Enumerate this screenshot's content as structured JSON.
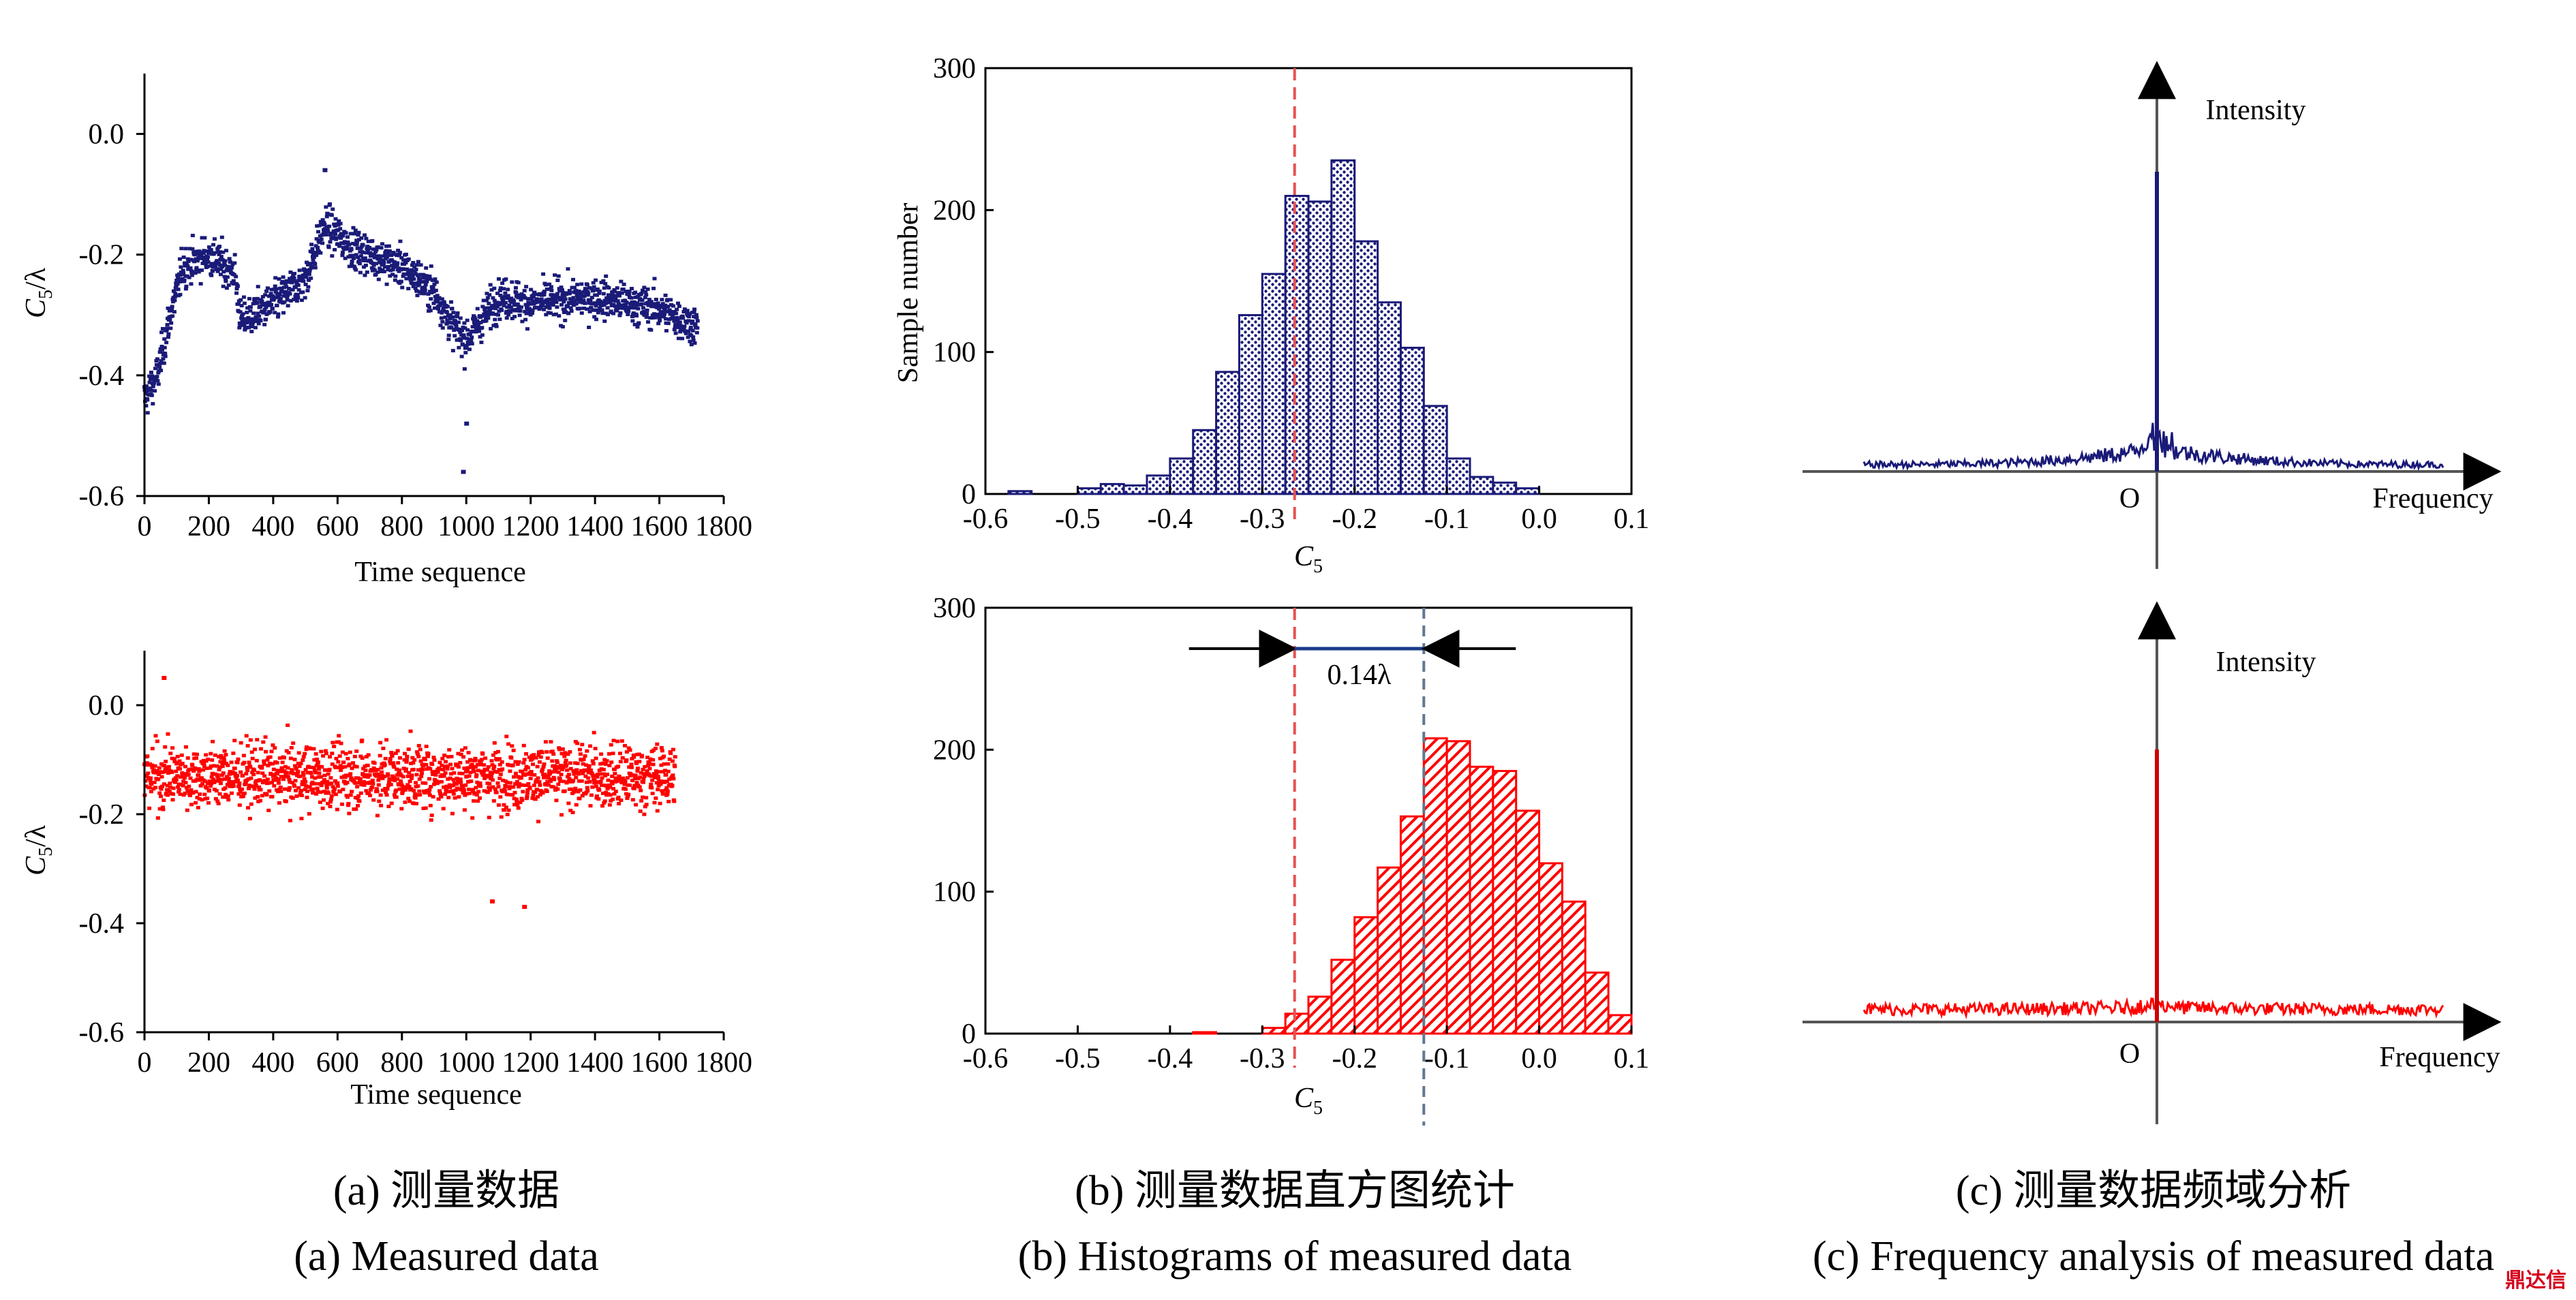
{
  "colors": {
    "series_a": "#1a1a78",
    "series_b": "#ff0000",
    "marker_mean": "#e85050",
    "marker_shift": "#607890"
  },
  "captions": [
    {
      "cn": "(a) 测量数据",
      "en": "(a) Measured data"
    },
    {
      "cn": "(b) 测量数据直方图统计",
      "en": "(b) Histograms of measured data"
    },
    {
      "cn": "(c) 测量数据频域分析",
      "en": "(c) Frequency analysis of measured data"
    }
  ],
  "watermark": "鼎达信",
  "chart_data": [
    {
      "id": "a_top",
      "type": "scatter",
      "color": "#1a1a78",
      "xlabel": "Time sequence",
      "ylabel": "C5/λ",
      "xlim": [
        0,
        1800
      ],
      "ylim": [
        -0.6,
        0.1
      ],
      "xticks": [
        "0",
        "200",
        "400",
        "600",
        "800",
        "1000",
        "1200",
        "1400",
        "1600",
        "1800"
      ],
      "yticks": [
        "0.0",
        "-0.2",
        "-0.4",
        "-0.6"
      ],
      "n_points": 1720,
      "trend": {
        "x": [
          0,
          40,
          80,
          120,
          200,
          280,
          300,
          400,
          500,
          560,
          650,
          800,
          900,
          960,
          1000,
          1100,
          1200,
          1400,
          1600,
          1720
        ],
        "y": [
          -0.44,
          -0.4,
          -0.3,
          -0.22,
          -0.2,
          -0.23,
          -0.31,
          -0.28,
          -0.24,
          -0.15,
          -0.19,
          -0.22,
          -0.26,
          -0.32,
          -0.34,
          -0.27,
          -0.28,
          -0.27,
          -0.29,
          -0.32
        ]
      },
      "spread": 0.05,
      "outliers": [
        {
          "x": 990,
          "y": -0.56
        },
        {
          "x": 1000,
          "y": -0.48
        },
        {
          "x": 560,
          "y": -0.06
        }
      ]
    },
    {
      "id": "a_bottom",
      "type": "scatter",
      "color": "#ff0000",
      "xlabel": "Time sequence",
      "ylabel": "C5/λ",
      "xlim": [
        0,
        1800
      ],
      "ylim": [
        -0.6,
        0.1
      ],
      "xticks": [
        "0",
        "200",
        "400",
        "600",
        "800",
        "1000",
        "1200",
        "1400",
        "1600",
        "1800"
      ],
      "yticks": [
        "0.0",
        "-0.2",
        "-0.4",
        "-0.6"
      ],
      "n_points": 1650,
      "trend": {
        "x": [
          0,
          1650
        ],
        "y": [
          -0.13,
          -0.13
        ]
      },
      "spread": 0.09,
      "outliers": [
        {
          "x": 1180,
          "y": -0.37
        },
        {
          "x": 1080,
          "y": -0.36
        },
        {
          "x": 60,
          "y": 0.05
        }
      ]
    },
    {
      "id": "b_top",
      "type": "bar",
      "color": "#1a1a78",
      "xlabel": "C5",
      "ylabel": "Sample number",
      "xlim": [
        -0.6,
        0.1
      ],
      "ylim": [
        0,
        300
      ],
      "xticks": [
        "-0.6",
        "-0.5",
        "-0.4",
        "-0.3",
        "-0.2",
        "-0.1",
        "0.0",
        "0.1"
      ],
      "yticks": [
        "0",
        "100",
        "200",
        "300"
      ],
      "bin_width": 0.025,
      "bins": [
        {
          "x": -0.5625,
          "v": 2
        },
        {
          "x": -0.4875,
          "v": 4
        },
        {
          "x": -0.4625,
          "v": 7
        },
        {
          "x": -0.4375,
          "v": 6
        },
        {
          "x": -0.4125,
          "v": 13
        },
        {
          "x": -0.3875,
          "v": 25
        },
        {
          "x": -0.3625,
          "v": 45
        },
        {
          "x": -0.3375,
          "v": 86
        },
        {
          "x": -0.3125,
          "v": 126
        },
        {
          "x": -0.2875,
          "v": 155
        },
        {
          "x": -0.2625,
          "v": 210
        },
        {
          "x": -0.2375,
          "v": 206
        },
        {
          "x": -0.2125,
          "v": 235
        },
        {
          "x": -0.1875,
          "v": 178
        },
        {
          "x": -0.1625,
          "v": 135
        },
        {
          "x": -0.1375,
          "v": 103
        },
        {
          "x": -0.1125,
          "v": 62
        },
        {
          "x": -0.0875,
          "v": 25
        },
        {
          "x": -0.0625,
          "v": 12
        },
        {
          "x": -0.0375,
          "v": 8
        },
        {
          "x": -0.0125,
          "v": 4
        }
      ],
      "mean_line": -0.265
    },
    {
      "id": "b_bottom",
      "type": "bar",
      "color": "#ff0000",
      "xlabel": "C5",
      "ylabel": "",
      "xlim": [
        -0.6,
        0.1
      ],
      "ylim": [
        0,
        300
      ],
      "xticks": [
        "-0.6",
        "-0.5",
        "-0.4",
        "-0.3",
        "-0.2",
        "-0.1",
        "0.0",
        "0.1"
      ],
      "yticks": [
        "0",
        "100",
        "200",
        "300"
      ],
      "bin_width": 0.025,
      "bins": [
        {
          "x": -0.3625,
          "v": 1
        },
        {
          "x": -0.2875,
          "v": 4
        },
        {
          "x": -0.2625,
          "v": 14
        },
        {
          "x": -0.2375,
          "v": 26
        },
        {
          "x": -0.2125,
          "v": 52
        },
        {
          "x": -0.1875,
          "v": 82
        },
        {
          "x": -0.1625,
          "v": 117
        },
        {
          "x": -0.1375,
          "v": 153
        },
        {
          "x": -0.1125,
          "v": 208
        },
        {
          "x": -0.0875,
          "v": 206
        },
        {
          "x": -0.0625,
          "v": 188
        },
        {
          "x": -0.0375,
          "v": 185
        },
        {
          "x": -0.0125,
          "v": 157
        },
        {
          "x": 0.0125,
          "v": 120
        },
        {
          "x": 0.0375,
          "v": 93
        },
        {
          "x": 0.0625,
          "v": 43
        },
        {
          "x": 0.0875,
          "v": 13
        }
      ],
      "mean_line": -0.265,
      "shift_line": -0.125,
      "annotation": "0.14λ"
    },
    {
      "id": "c_top",
      "type": "spectrum",
      "color": "#1a1a78",
      "xlabel": "Frequency",
      "ylabel": "Intensity",
      "origin": "O",
      "peak": 0.88,
      "noise_base": 0.06,
      "noise_center_boost": 0.14
    },
    {
      "id": "c_bottom",
      "type": "spectrum",
      "color": "#ff0000",
      "xlabel": "Frequency",
      "ylabel": "Intensity",
      "origin": "O",
      "peak": 0.8,
      "noise_base": 0.11,
      "noise_center_boost": 0.02
    }
  ]
}
